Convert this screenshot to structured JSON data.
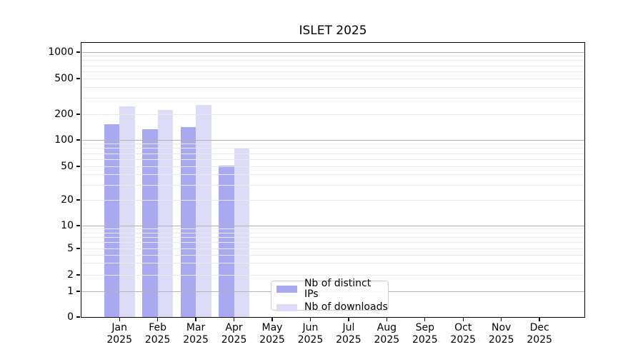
{
  "chart_data": {
    "type": "bar",
    "title": "ISLET 2025",
    "months": [
      "Jan",
      "Feb",
      "Mar",
      "Apr",
      "May",
      "Jun",
      "Jul",
      "Aug",
      "Sep",
      "Oct",
      "Nov",
      "Dec"
    ],
    "year": "2025",
    "series": [
      {
        "name": "Nb of distinct IPs",
        "color": "#a9a9f2",
        "values": [
          153,
          134,
          141,
          51,
          null,
          null,
          null,
          null,
          null,
          null,
          null,
          null
        ]
      },
      {
        "name": "Nb of downloads",
        "color": "#dcdcf8",
        "values": [
          245,
          223,
          254,
          80,
          null,
          null,
          null,
          null,
          null,
          null,
          null,
          null
        ]
      }
    ],
    "y_ticks": [
      0,
      1,
      2,
      5,
      10,
      20,
      50,
      100,
      200,
      500,
      1000
    ],
    "y_scale": "symlog",
    "ylim": [
      0,
      1300
    ],
    "grid": true,
    "grid_major_color": "#b3b3b3",
    "grid_minor_color": "#e9e9e9",
    "legend_position": "inside-lower-center"
  }
}
